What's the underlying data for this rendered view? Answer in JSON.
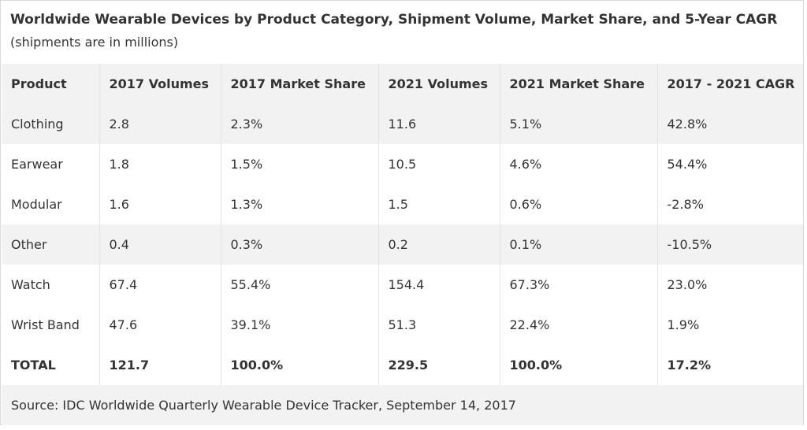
{
  "caption": {
    "title": "Worldwide Wearable Devices by Product Category, Shipment Volume, Market Share, and 5-Year CAGR",
    "subtitle": "(shipments are in millions)"
  },
  "table": {
    "headers": [
      "Product",
      "2017 Volumes",
      "2017 Market Share",
      "2021 Volumes",
      "2021 Market Share",
      "2017 - 2021 CAGR"
    ],
    "rows": [
      [
        "Clothing",
        "2.8",
        "2.3%",
        "11.6",
        "5.1%",
        "42.8%"
      ],
      [
        "Earwear",
        "1.8",
        "1.5%",
        "10.5",
        "4.6%",
        "54.4%"
      ],
      [
        "Modular",
        "1.6",
        "1.3%",
        "1.5",
        "0.6%",
        "-2.8%"
      ],
      [
        "Other",
        "0.4",
        "0.3%",
        "0.2",
        "0.1%",
        "-10.5%"
      ],
      [
        "Watch",
        "67.4",
        "55.4%",
        "154.4",
        "67.3%",
        "23.0%"
      ],
      [
        "Wrist Band",
        "47.6",
        "39.1%",
        "51.3",
        "22.4%",
        "1.9%"
      ]
    ],
    "total": [
      "TOTAL",
      "121.7",
      "100.0%",
      "229.5",
      "100.0%",
      "17.2%"
    ],
    "source": "Source: IDC Worldwide Quarterly Wearable Device Tracker, September 14, 2017"
  },
  "colors": {
    "header_bg": "#f2f2f2",
    "stripe_bg": "#f2f2f2",
    "text": "#333333",
    "border": "#d9d9d9"
  }
}
